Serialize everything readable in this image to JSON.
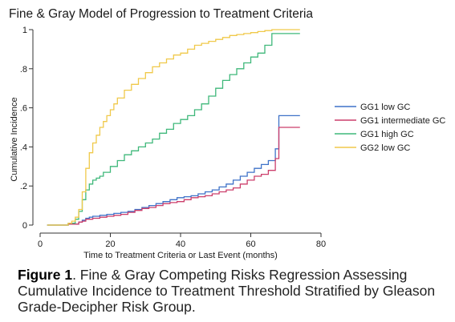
{
  "chart_data": {
    "type": "line",
    "title": "Fine & Gray Model of Progression to Treatment Criteria",
    "xlabel": "Time to Treatment Criteria or Last Event (months)",
    "ylabel": "Cumulative Incidence",
    "xlim": [
      0,
      80
    ],
    "ylim": [
      0,
      1
    ],
    "xticks": [
      "0",
      "20",
      "40",
      "60",
      "80"
    ],
    "yticks": [
      "0",
      ".2",
      ".4",
      ".6",
      ".8",
      "1"
    ],
    "xtick_values": [
      0,
      20,
      40,
      60,
      80
    ],
    "ytick_values": [
      0,
      0.2,
      0.4,
      0.6,
      0.8,
      1
    ],
    "grid": false,
    "legend_position": "right",
    "step": true,
    "series": [
      {
        "name": "GG1 low GC",
        "color": "#3f72c8",
        "x": [
          2,
          8,
          11,
          12,
          13,
          14,
          15,
          17,
          19,
          21,
          23,
          25,
          27,
          29,
          31,
          33,
          35,
          37,
          39,
          41,
          43,
          45,
          47,
          49,
          51,
          53,
          55,
          57,
          59,
          61,
          63,
          65,
          67,
          68,
          69,
          72,
          74
        ],
        "y": [
          0,
          0.005,
          0.015,
          0.025,
          0.035,
          0.04,
          0.045,
          0.05,
          0.055,
          0.06,
          0.065,
          0.07,
          0.08,
          0.09,
          0.1,
          0.11,
          0.12,
          0.13,
          0.14,
          0.145,
          0.15,
          0.16,
          0.17,
          0.18,
          0.195,
          0.21,
          0.23,
          0.25,
          0.27,
          0.29,
          0.31,
          0.33,
          0.39,
          0.56,
          0.56,
          0.56,
          0.56
        ]
      },
      {
        "name": "GG1 intermediate GC",
        "color": "#cc3e6b",
        "x": [
          2,
          8,
          11,
          12,
          13,
          15,
          17,
          19,
          21,
          23,
          25,
          27,
          29,
          31,
          33,
          35,
          37,
          39,
          41,
          43,
          45,
          47,
          49,
          51,
          53,
          55,
          57,
          59,
          61,
          63,
          65,
          67,
          68,
          69,
          72,
          74
        ],
        "y": [
          0,
          0.005,
          0.015,
          0.02,
          0.03,
          0.035,
          0.04,
          0.045,
          0.05,
          0.055,
          0.065,
          0.075,
          0.085,
          0.09,
          0.1,
          0.11,
          0.115,
          0.12,
          0.13,
          0.14,
          0.145,
          0.15,
          0.16,
          0.17,
          0.18,
          0.19,
          0.21,
          0.23,
          0.25,
          0.26,
          0.28,
          0.34,
          0.5,
          0.5,
          0.5,
          0.5
        ]
      },
      {
        "name": "GG1 high GC",
        "color": "#3fb87a",
        "x": [
          2,
          8,
          10,
          11,
          12,
          13,
          14,
          15,
          16,
          17,
          18,
          20,
          22,
          24,
          26,
          28,
          30,
          32,
          34,
          36,
          38,
          40,
          42,
          44,
          46,
          48,
          50,
          52,
          54,
          56,
          58,
          60,
          62,
          64,
          66,
          68,
          71,
          74
        ],
        "y": [
          0,
          0.01,
          0.03,
          0.07,
          0.13,
          0.18,
          0.21,
          0.23,
          0.24,
          0.25,
          0.27,
          0.3,
          0.33,
          0.36,
          0.38,
          0.4,
          0.42,
          0.44,
          0.47,
          0.49,
          0.52,
          0.54,
          0.56,
          0.59,
          0.62,
          0.66,
          0.7,
          0.74,
          0.77,
          0.8,
          0.83,
          0.86,
          0.88,
          0.92,
          0.98,
          0.98,
          0.98,
          0.98
        ]
      },
      {
        "name": "GG2 low GC",
        "color": "#f0c94a",
        "x": [
          2,
          8,
          9,
          10,
          11,
          12,
          13,
          14,
          15,
          16,
          17,
          18,
          19,
          20,
          21,
          22,
          24,
          26,
          28,
          30,
          32,
          34,
          36,
          38,
          40,
          42,
          44,
          46,
          48,
          50,
          52,
          54,
          56,
          58,
          60,
          62,
          64,
          66,
          68,
          70,
          72,
          74
        ],
        "y": [
          0,
          0.01,
          0.02,
          0.04,
          0.08,
          0.17,
          0.29,
          0.37,
          0.42,
          0.46,
          0.5,
          0.53,
          0.56,
          0.59,
          0.62,
          0.65,
          0.69,
          0.72,
          0.75,
          0.78,
          0.81,
          0.83,
          0.85,
          0.87,
          0.88,
          0.9,
          0.92,
          0.93,
          0.94,
          0.95,
          0.96,
          0.97,
          0.975,
          0.98,
          0.985,
          0.99,
          0.995,
          1.0,
          1.0,
          1.0,
          1.0,
          1.0
        ]
      }
    ]
  },
  "caption": {
    "label": "Figure 1",
    "text": ". Fine & Gray Competing Risks Regression Assessing Cumulative Incidence to Treatment Threshold Stratified by Gleason Grade-Decipher Risk Group."
  }
}
